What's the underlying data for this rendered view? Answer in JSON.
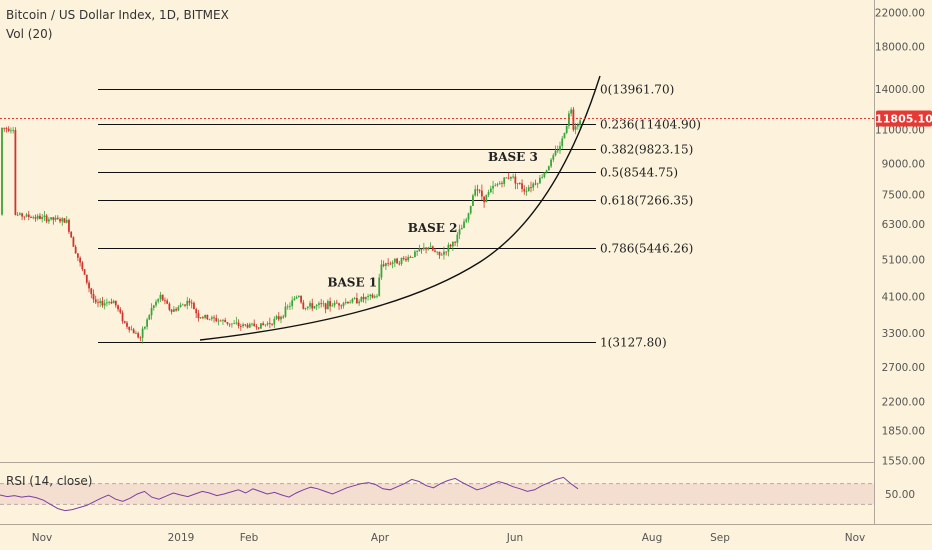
{
  "header": {
    "title": "Bitcoin / US Dollar Index, 1D, BITMEX",
    "volume_label": "Vol (20)"
  },
  "current_price": {
    "value": 11805.1,
    "label": "11805.10",
    "color": "#e53935"
  },
  "chart_data": {
    "type": "candlestick",
    "y_scale": "log",
    "y_ticks": [
      {
        "value": 22000,
        "label": "22000.00"
      },
      {
        "value": 18000,
        "label": "18000.00"
      },
      {
        "value": 14000,
        "label": "14000.00"
      },
      {
        "value": 11000,
        "label": "11000.00"
      },
      {
        "value": 9000,
        "label": "9000.00"
      },
      {
        "value": 7500,
        "label": "7500.00"
      },
      {
        "value": 6300,
        "label": "6300.00"
      },
      {
        "value": 5100,
        "label": "5100.00"
      },
      {
        "value": 4100,
        "label": "4100.00"
      },
      {
        "value": 3300,
        "label": "3300.00"
      },
      {
        "value": 2700,
        "label": "2700.00"
      },
      {
        "value": 2200,
        "label": "2200.00"
      },
      {
        "value": 1850,
        "label": "1850.00"
      },
      {
        "value": 1550,
        "label": "1550.00"
      }
    ],
    "x_ticks": [
      "Nov",
      "2019",
      "Feb",
      "Apr",
      "Jun",
      "Aug",
      "Sep",
      "Nov"
    ],
    "price_path": [
      {
        "d": "2018-10-20",
        "v": 6650
      },
      {
        "d": "2018-11-12",
        "v": 6400
      },
      {
        "d": "2018-11-15",
        "v": 5600
      },
      {
        "d": "2018-11-19",
        "v": 4800
      },
      {
        "d": "2018-11-25",
        "v": 3900
      },
      {
        "d": "2018-12-03",
        "v": 4000
      },
      {
        "d": "2018-12-08",
        "v": 3500
      },
      {
        "d": "2018-12-15",
        "v": 3200
      },
      {
        "d": "2018-12-20",
        "v": 3800
      },
      {
        "d": "2018-12-24",
        "v": 4100
      },
      {
        "d": "2018-12-29",
        "v": 3750
      },
      {
        "d": "2019-01-06",
        "v": 4000
      },
      {
        "d": "2019-01-10",
        "v": 3650
      },
      {
        "d": "2019-01-20",
        "v": 3550
      },
      {
        "d": "2019-01-28",
        "v": 3450
      },
      {
        "d": "2019-02-08",
        "v": 3450
      },
      {
        "d": "2019-02-15",
        "v": 3600
      },
      {
        "d": "2019-02-24",
        "v": 4150
      },
      {
        "d": "2019-02-26",
        "v": 3850
      },
      {
        "d": "2019-03-10",
        "v": 3900
      },
      {
        "d": "2019-03-31",
        "v": 4100
      },
      {
        "d": "2019-04-02",
        "v": 4950
      },
      {
        "d": "2019-04-12",
        "v": 5100
      },
      {
        "d": "2019-04-23",
        "v": 5500
      },
      {
        "d": "2019-04-28",
        "v": 5200
      },
      {
        "d": "2019-05-05",
        "v": 5700
      },
      {
        "d": "2019-05-11",
        "v": 6600
      },
      {
        "d": "2019-05-14",
        "v": 7900
      },
      {
        "d": "2019-05-18",
        "v": 7300
      },
      {
        "d": "2019-05-22",
        "v": 7800
      },
      {
        "d": "2019-05-30",
        "v": 8400
      },
      {
        "d": "2019-06-05",
        "v": 7700
      },
      {
        "d": "2019-06-12",
        "v": 8200
      },
      {
        "d": "2019-06-16",
        "v": 8900
      },
      {
        "d": "2019-06-22",
        "v": 10300
      },
      {
        "d": "2019-06-26",
        "v": 12600
      },
      {
        "d": "2019-06-27",
        "v": 11200
      },
      {
        "d": "2019-06-30",
        "v": 11600
      },
      {
        "d": "2019-07-01",
        "v": 11100
      }
    ],
    "annotations": {
      "fib_levels": [
        {
          "label": "0(13961.70)",
          "value": 13961.7
        },
        {
          "label": "0.236(11404.90)",
          "value": 11404.9
        },
        {
          "label": "0.382(9823.15)",
          "value": 9823.15
        },
        {
          "label": "0.5(8544.75)",
          "value": 8544.75
        },
        {
          "label": "0.618(7266.35)",
          "value": 7266.35
        },
        {
          "label": "0.786(5446.26)",
          "value": 5446.26
        },
        {
          "label": "1(3127.80)",
          "value": 3127.8
        }
      ],
      "bases": [
        {
          "label": "BASE 1",
          "date": "2019-03-20",
          "value": 4350
        },
        {
          "label": "BASE 2",
          "date": "2019-04-25",
          "value": 6000
        },
        {
          "label": "BASE 3",
          "date": "2019-05-31",
          "value": 9150
        }
      ]
    },
    "rsi": {
      "label": "RSI (14, close)",
      "tick": {
        "value": 50,
        "label": "50.00"
      },
      "upper": 70,
      "lower": 30,
      "values": [
        48,
        45,
        47,
        44,
        46,
        43,
        38,
        30,
        22,
        18,
        20,
        24,
        28,
        35,
        42,
        48,
        40,
        36,
        42,
        50,
        55,
        44,
        40,
        46,
        52,
        48,
        45,
        50,
        55,
        52,
        47,
        50,
        54,
        58,
        52,
        60,
        55,
        50,
        53,
        48,
        44,
        52,
        58,
        63,
        60,
        55,
        50,
        56,
        62,
        66,
        70,
        72,
        68,
        60,
        58,
        64,
        70,
        78,
        74,
        66,
        62,
        70,
        76,
        80,
        72,
        65,
        58,
        62,
        68,
        74,
        70,
        64,
        60,
        55,
        58,
        66,
        72,
        78,
        82,
        70,
        60
      ]
    }
  }
}
